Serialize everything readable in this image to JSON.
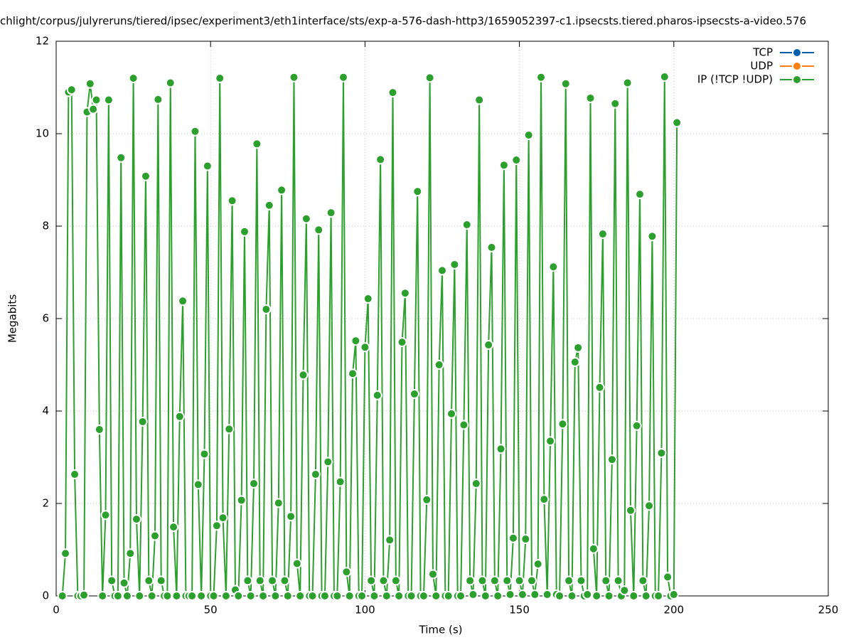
{
  "chart_data": {
    "type": "line",
    "title": "chlight/corpus/julyreruns/tiered/ipsec/experiment3/eth1interface/sts/exp-a-576-dash-http3/1659052397-c1.ipsecsts.tiered.pharos-ipsecsts-a-video.576",
    "xlabel": "Time (s)",
    "ylabel": "Megabits",
    "xlim": [
      0,
      250
    ],
    "xticks": [
      0,
      50,
      100,
      150,
      200,
      250
    ],
    "ylim": [
      0,
      12
    ],
    "yticks": [
      0,
      2,
      4,
      6,
      8,
      10,
      12
    ],
    "grid": true,
    "legend": "top-right",
    "series": [
      {
        "name": "TCP",
        "color": "#0060ad",
        "x": [],
        "values": []
      },
      {
        "name": "UDP",
        "color": "#ff7f0e",
        "x": [],
        "values": []
      },
      {
        "name": "IP (!TCP  !UDP)",
        "color": "#2ca02c",
        "x": [
          2,
          3,
          4,
          5,
          6,
          7,
          8,
          9,
          10,
          11,
          12,
          13,
          14,
          15,
          16,
          17,
          18,
          19,
          20,
          21,
          22,
          23,
          24,
          25,
          26,
          27,
          28,
          29,
          30,
          31,
          32,
          33,
          34,
          35,
          36,
          37,
          38,
          39,
          40,
          41,
          42,
          43,
          44,
          45,
          46,
          47,
          48,
          49,
          50,
          51,
          52,
          53,
          54,
          55,
          56,
          57,
          58,
          59,
          60,
          61,
          62,
          63,
          64,
          65,
          66,
          67,
          68,
          69,
          70,
          71,
          72,
          73,
          74,
          75,
          76,
          77,
          78,
          79,
          80,
          81,
          82,
          83,
          84,
          85,
          86,
          87,
          88,
          89,
          90,
          91,
          92,
          93,
          94,
          95,
          96,
          97,
          98,
          99,
          100,
          101,
          102,
          103,
          104,
          105,
          106,
          107,
          108,
          109,
          110,
          111,
          112,
          113,
          114,
          115,
          116,
          117,
          118,
          119,
          120,
          121,
          122,
          123,
          124,
          125,
          126,
          127,
          128,
          129,
          130,
          131,
          132,
          133,
          134,
          135,
          136,
          137,
          138,
          139,
          140,
          141,
          142,
          143,
          144,
          145,
          146,
          147,
          148,
          149,
          150,
          151,
          152,
          153,
          154,
          155,
          156,
          157,
          158,
          159,
          160,
          161,
          162,
          163,
          164,
          165,
          166,
          167,
          168,
          169,
          170,
          171,
          172,
          173,
          174,
          175,
          176,
          177,
          178,
          179,
          180,
          181,
          182,
          183,
          184,
          185,
          186,
          187,
          188,
          189,
          190,
          191,
          192,
          193,
          194,
          195,
          196,
          197,
          198,
          199,
          200,
          201
        ],
        "values": [
          0,
          0.92,
          10.9,
          10.95,
          2.63,
          0,
          0,
          0.02,
          10.47,
          11.08,
          10.53,
          10.73,
          3.6,
          0,
          1.75,
          10.73,
          0.33,
          0,
          0,
          9.48,
          0.28,
          0,
          0.92,
          11.2,
          1.66,
          0,
          3.77,
          9.08,
          0.33,
          0,
          1.3,
          10.74,
          0.33,
          0,
          0,
          11.1,
          1.49,
          0,
          3.88,
          6.38,
          0,
          0,
          0,
          10.05,
          2.41,
          0,
          3.07,
          9.3,
          0,
          0,
          1.52,
          11.2,
          1.69,
          0,
          3.61,
          8.55,
          0.13,
          0,
          2.07,
          7.88,
          0.33,
          0,
          2.43,
          9.78,
          0.33,
          0,
          6.2,
          8.45,
          0.33,
          0,
          2.01,
          8.78,
          0.33,
          0,
          1.72,
          11.22,
          0.7,
          0,
          4.78,
          8.16,
          0,
          0,
          2.63,
          7.92,
          0,
          0,
          2.9,
          8.29,
          0,
          0,
          2.47,
          11.22,
          0.52,
          0,
          4.81,
          5.52,
          0,
          0,
          5.38,
          6.43,
          0.33,
          0,
          4.34,
          9.44,
          0.33,
          0,
          1.21,
          10.89,
          0.33,
          0,
          5.49,
          6.55,
          0,
          0,
          4.37,
          8.75,
          0,
          0,
          2.08,
          11.21,
          0.47,
          0,
          5,
          7.04,
          0,
          0,
          3.94,
          7.17,
          0,
          0,
          3.7,
          8.03,
          0.33,
          0.03,
          2.43,
          10.73,
          0.33,
          0,
          5.43,
          7.54,
          0.33,
          0,
          3.18,
          9.32,
          0.33,
          0.03,
          1.25,
          9.43,
          0.33,
          0.03,
          1.23,
          9.97,
          0.33,
          0.03,
          0.69,
          11.22,
          2.09,
          0.03,
          3.35,
          7.12,
          0.03,
          0,
          3.72,
          11.08,
          0.33,
          0,
          5.06,
          5.37,
          0.33,
          0,
          0.03,
          10.77,
          1.02,
          0,
          4.51,
          7.83,
          0.33,
          0,
          2.95,
          10.65,
          0.33,
          0,
          0.12,
          11.1,
          1.85,
          0,
          3.68,
          8.69,
          0.33,
          0,
          1.95,
          7.78,
          0,
          0,
          3.09,
          11.23,
          0.41,
          0,
          0.03,
          10.24
        ]
      }
    ]
  }
}
